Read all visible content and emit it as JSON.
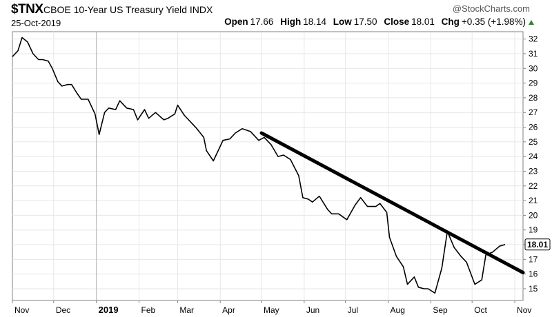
{
  "header": {
    "symbol": "$TNX",
    "name": "CBOE 10-Year US Treasury Yield INDX",
    "date": "25-Oct-2019",
    "brand": "@StockCharts.com",
    "open_label": "Open",
    "open": "17.66",
    "high_label": "High",
    "high": "18.14",
    "low_label": "Low",
    "low": "17.50",
    "close_label": "Close",
    "close": "18.01",
    "chg_label": "Chg",
    "chg": "+0.35 (+1.98%)",
    "up_color": "#2a8a2a"
  },
  "chart_data": {
    "type": "line",
    "ylim": [
      14.2,
      32.5
    ],
    "yticks": [
      15,
      16,
      17,
      18,
      19,
      20,
      21,
      22,
      23,
      24,
      25,
      26,
      27,
      28,
      29,
      30,
      31,
      32
    ],
    "xlim": [
      "2018-11-01",
      "2019-11-07"
    ],
    "month_ticks": [
      {
        "date": "2018-11-01",
        "label": "Nov",
        "bold": false
      },
      {
        "date": "2018-12-01",
        "label": "Dec",
        "bold": false
      },
      {
        "date": "2019-01-01",
        "label": "2019",
        "bold": true
      },
      {
        "date": "2019-02-01",
        "label": "Feb",
        "bold": false
      },
      {
        "date": "2019-03-01",
        "label": "Mar",
        "bold": false
      },
      {
        "date": "2019-04-01",
        "label": "Apr",
        "bold": false
      },
      {
        "date": "2019-05-01",
        "label": "May",
        "bold": false
      },
      {
        "date": "2019-06-01",
        "label": "Jun",
        "bold": false
      },
      {
        "date": "2019-07-01",
        "label": "Jul",
        "bold": false
      },
      {
        "date": "2019-08-01",
        "label": "Aug",
        "bold": false
      },
      {
        "date": "2019-09-01",
        "label": "Sep",
        "bold": false
      },
      {
        "date": "2019-10-01",
        "label": "Oct",
        "bold": false
      },
      {
        "date": "2019-11-01",
        "label": "Nov",
        "bold": false
      }
    ],
    "series": [
      {
        "x": [
          "2018-11-01",
          "2018-11-05",
          "2018-11-08",
          "2018-11-12",
          "2018-11-16",
          "2018-11-20",
          "2018-11-23",
          "2018-11-27",
          "2018-11-30",
          "2018-12-04",
          "2018-12-07",
          "2018-12-11",
          "2018-12-14",
          "2018-12-18",
          "2018-12-21",
          "2018-12-26",
          "2018-12-31",
          "2019-01-03",
          "2019-01-07",
          "2019-01-10",
          "2019-01-15",
          "2019-01-18",
          "2019-01-23",
          "2019-01-28",
          "2019-01-31",
          "2019-02-05",
          "2019-02-08",
          "2019-02-13",
          "2019-02-19",
          "2019-02-22",
          "2019-02-27",
          "2019-03-01",
          "2019-03-06",
          "2019-03-11",
          "2019-03-15",
          "2019-03-20",
          "2019-03-22",
          "2019-03-27",
          "2019-03-29",
          "2019-04-03",
          "2019-04-08",
          "2019-04-12",
          "2019-04-17",
          "2019-04-23",
          "2019-04-29",
          "2019-05-03",
          "2019-05-08",
          "2019-05-13",
          "2019-05-17",
          "2019-05-22",
          "2019-05-28",
          "2019-05-31",
          "2019-06-04",
          "2019-06-07",
          "2019-06-12",
          "2019-06-18",
          "2019-06-21",
          "2019-06-26",
          "2019-07-02",
          "2019-07-08",
          "2019-07-12",
          "2019-07-17",
          "2019-07-23",
          "2019-07-26",
          "2019-07-31",
          "2019-08-02",
          "2019-08-07",
          "2019-08-12",
          "2019-08-15",
          "2019-08-20",
          "2019-08-23",
          "2019-08-27",
          "2019-08-30",
          "2019-09-04",
          "2019-09-09",
          "2019-09-13",
          "2019-09-18",
          "2019-09-23",
          "2019-09-27",
          "2019-10-03",
          "2019-10-08",
          "2019-10-11",
          "2019-10-16",
          "2019-10-21",
          "2019-10-25"
        ],
        "y": [
          30.8,
          31.2,
          32.1,
          31.8,
          31.0,
          30.6,
          30.6,
          30.5,
          30.0,
          29.1,
          28.8,
          28.9,
          28.9,
          28.3,
          27.9,
          27.9,
          26.9,
          25.5,
          27.0,
          27.3,
          27.2,
          27.8,
          27.3,
          27.2,
          26.5,
          27.2,
          26.6,
          27.0,
          26.5,
          26.6,
          26.9,
          27.5,
          26.8,
          26.3,
          25.9,
          25.3,
          24.4,
          23.7,
          24.1,
          25.1,
          25.2,
          25.6,
          25.9,
          25.7,
          25.1,
          25.3,
          24.8,
          24.0,
          24.1,
          23.8,
          22.7,
          21.2,
          21.1,
          20.9,
          21.3,
          20.4,
          20.1,
          20.1,
          19.7,
          20.7,
          21.2,
          20.6,
          20.6,
          20.8,
          20.2,
          18.5,
          17.2,
          16.5,
          15.3,
          15.8,
          15.1,
          15.0,
          15.0,
          14.7,
          16.4,
          18.9,
          17.8,
          17.2,
          16.8,
          15.3,
          15.6,
          17.3,
          17.5,
          17.9,
          18.01
        ]
      },
      {
        "x": [
          "2019-05-01",
          "2019-11-07"
        ],
        "y": [
          25.6,
          16.1
        ]
      }
    ],
    "last_value_label": "18.01"
  }
}
